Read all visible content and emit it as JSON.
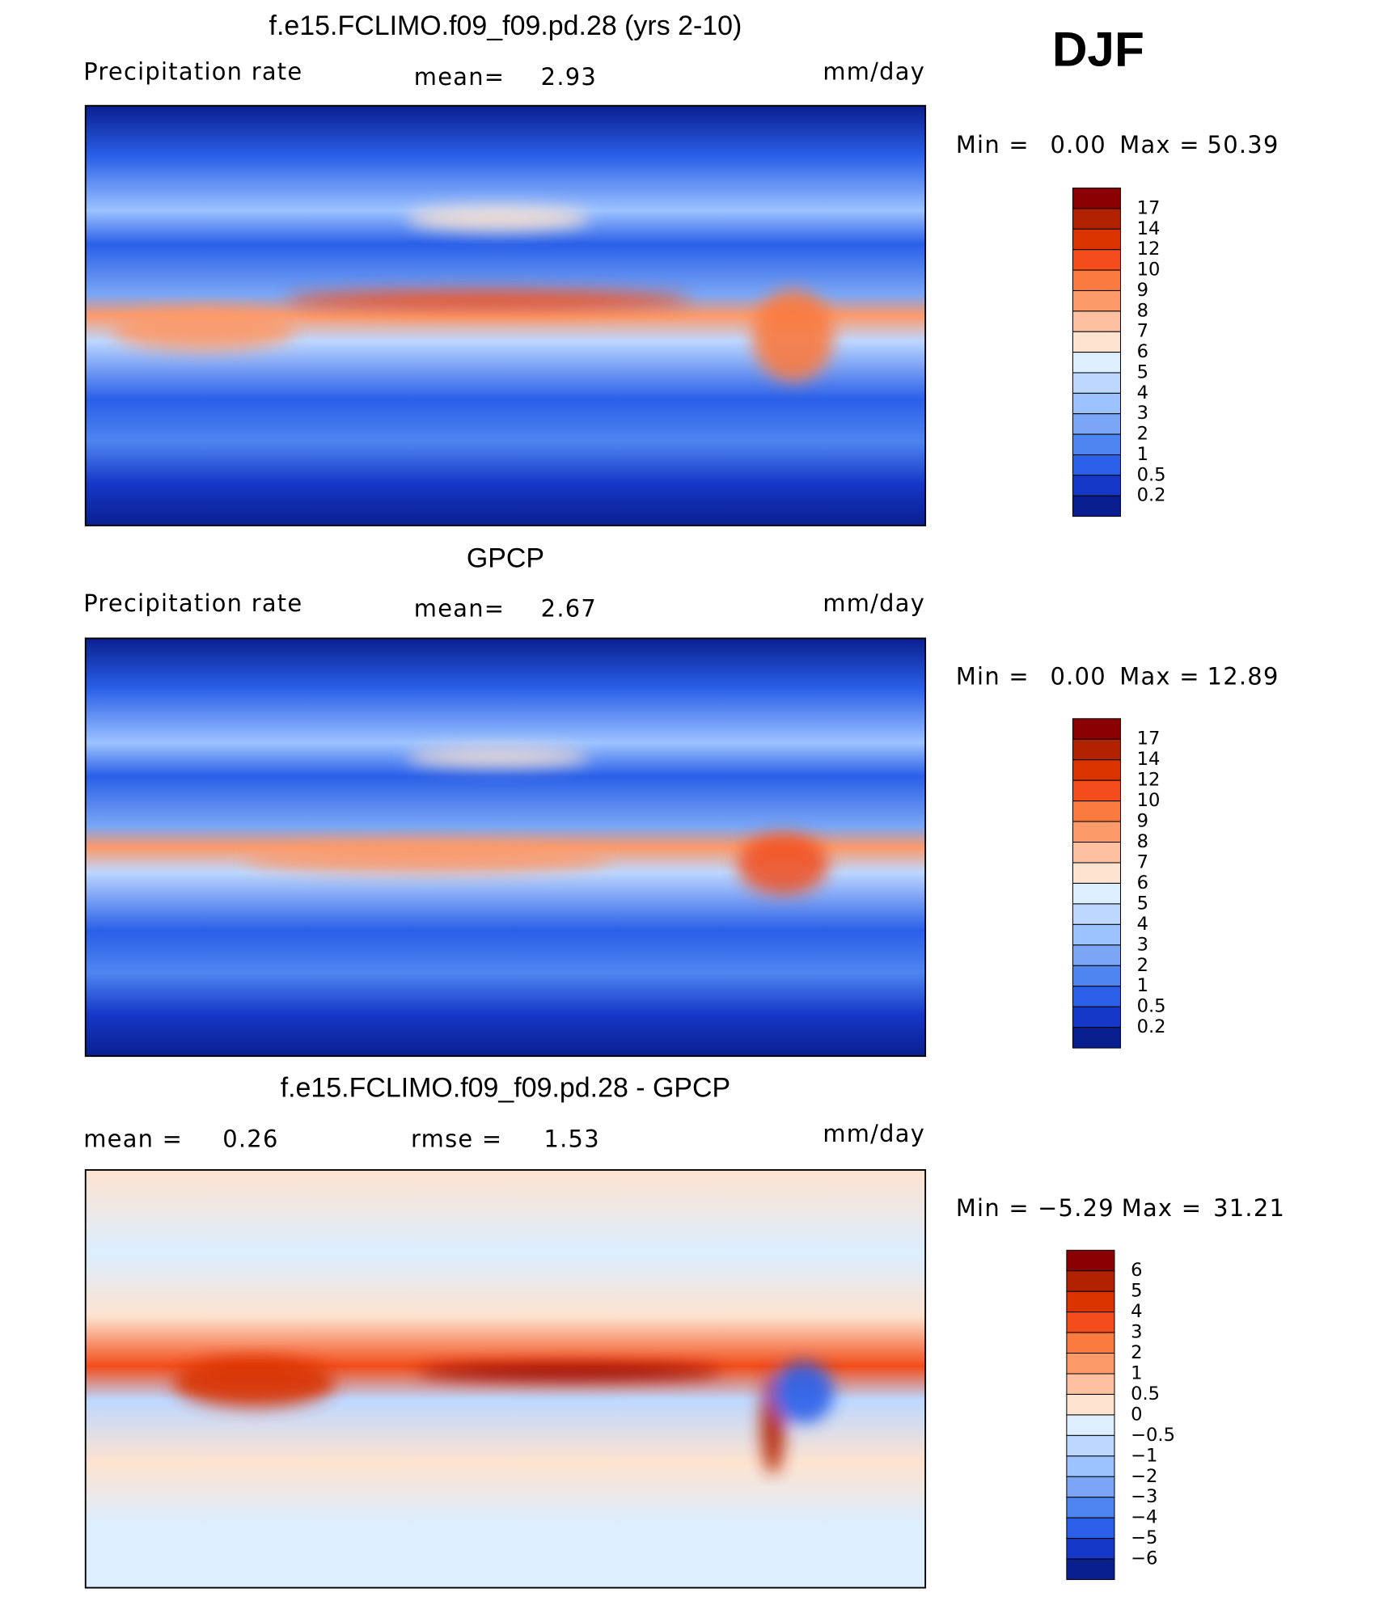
{
  "season": "DJF",
  "panels": [
    {
      "title": "f.e15.FCLIMO.f09_f09.pd.28 (yrs 2-10)",
      "left_label": "Precipitation rate",
      "stat_label": "mean=",
      "stat_value": "2.93",
      "units": "mm/day",
      "min_label": "Min =",
      "min": "0.00",
      "max_label": "Max =",
      "max": "50.39",
      "colorbar": {
        "labels": [
          "17",
          "14",
          "12",
          "10",
          "9",
          "8",
          "7",
          "6",
          "5",
          "4",
          "3",
          "2",
          "1",
          "0.5",
          "0.2"
        ],
        "colors": [
          "#8b0000",
          "#b22200",
          "#d93300",
          "#f24d1a",
          "#fa7a40",
          "#fc9a6a",
          "#fdc0a0",
          "#fde3d0",
          "#dceeff",
          "#bdd7ff",
          "#9cc2ff",
          "#7aa6f5",
          "#4f85f0",
          "#2a5fe8",
          "#1638c8",
          "#0a1f8f"
        ]
      }
    },
    {
      "title": "GPCP",
      "left_label": "Precipitation rate",
      "stat_label": "mean=",
      "stat_value": "2.67",
      "units": "mm/day",
      "min_label": "Min =",
      "min": "0.00",
      "max_label": "Max =",
      "max": "12.89",
      "colorbar": {
        "labels": [
          "17",
          "14",
          "12",
          "10",
          "9",
          "8",
          "7",
          "6",
          "5",
          "4",
          "3",
          "2",
          "1",
          "0.5",
          "0.2"
        ],
        "colors": [
          "#8b0000",
          "#b22200",
          "#d93300",
          "#f24d1a",
          "#fa7a40",
          "#fc9a6a",
          "#fdc0a0",
          "#fde3d0",
          "#dceeff",
          "#bdd7ff",
          "#9cc2ff",
          "#7aa6f5",
          "#4f85f0",
          "#2a5fe8",
          "#1638c8",
          "#0a1f8f"
        ]
      }
    },
    {
      "title": "f.e15.FCLIMO.f09_f09.pd.28 - GPCP",
      "left_label": "mean =",
      "left_value": "0.26",
      "stat_label": "rmse =",
      "stat_value": "1.53",
      "units": "mm/day",
      "min_label": "Min =",
      "min": "−5.29",
      "max_label": "Max =",
      "max": "31.21",
      "colorbar": {
        "labels": [
          "6",
          "5",
          "4",
          "3",
          "2",
          "1",
          "0.5",
          "0",
          "−0.5",
          "−1",
          "−2",
          "−3",
          "−4",
          "−5",
          "−6"
        ],
        "colors": [
          "#8b0000",
          "#b22200",
          "#d93300",
          "#f24d1a",
          "#fa7a40",
          "#fc9a6a",
          "#fdc0a0",
          "#fde3d0",
          "#dceeff",
          "#bdd7ff",
          "#9cc2ff",
          "#7aa6f5",
          "#4f85f0",
          "#2a5fe8",
          "#1638c8",
          "#0a1f8f"
        ]
      }
    }
  ]
}
